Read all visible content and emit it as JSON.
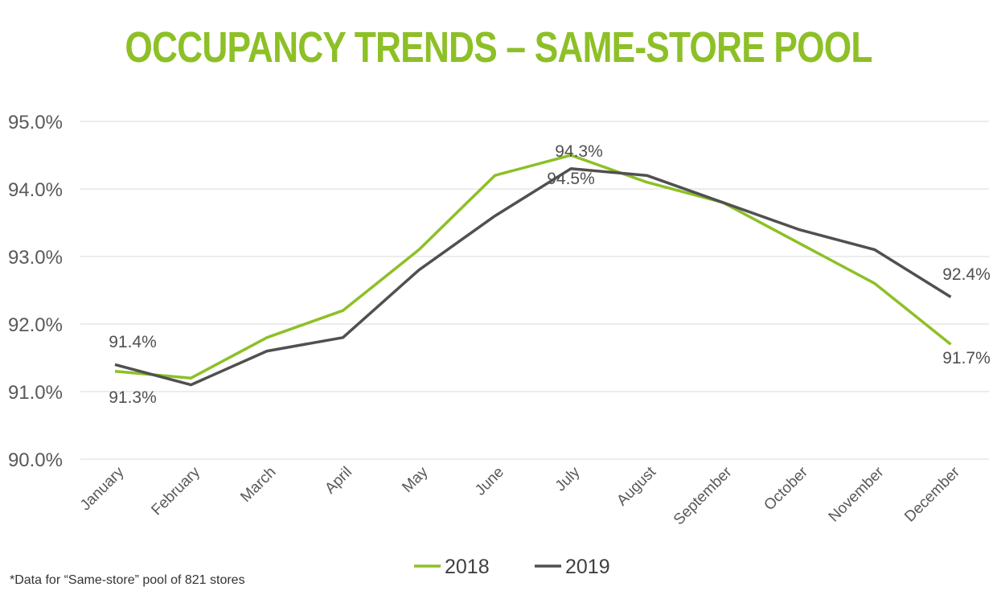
{
  "chart_data": {
    "type": "line",
    "title": "OCCUPANCY TRENDS – SAME-STORE POOL",
    "categories": [
      "January",
      "February",
      "March",
      "April",
      "May",
      "June",
      "July",
      "August",
      "September",
      "October",
      "November",
      "December"
    ],
    "series": [
      {
        "name": "2018",
        "color": "#8dc026",
        "values": [
          91.3,
          91.2,
          91.8,
          92.2,
          93.1,
          94.2,
          94.5,
          94.1,
          93.8,
          93.2,
          92.6,
          91.7
        ]
      },
      {
        "name": "2019",
        "color": "#505050",
        "values": [
          91.4,
          91.1,
          91.6,
          91.8,
          92.8,
          93.6,
          94.3,
          94.2,
          93.8,
          93.4,
          93.1,
          92.4
        ]
      }
    ],
    "ylim": [
      90,
      95
    ],
    "yticks": [
      "90.0%",
      "91.0%",
      "92.0%",
      "93.0%",
      "94.0%",
      "95.0%"
    ],
    "grid": true,
    "legend": "bottom-center",
    "data_labels": [
      {
        "text": "91.4%",
        "cat": 0,
        "pos": "above"
      },
      {
        "text": "91.3%",
        "cat": 0,
        "pos": "below"
      },
      {
        "text": "94.3%",
        "cat": 6,
        "pos": "above"
      },
      {
        "text": "94.5%",
        "cat": 6,
        "pos": "below"
      },
      {
        "text": "92.4%",
        "cat": 11,
        "pos": "above"
      },
      {
        "text": "91.7%",
        "cat": 11,
        "pos": "below"
      }
    ]
  },
  "footnote": "*Data for “Same-store” pool of 821 stores"
}
